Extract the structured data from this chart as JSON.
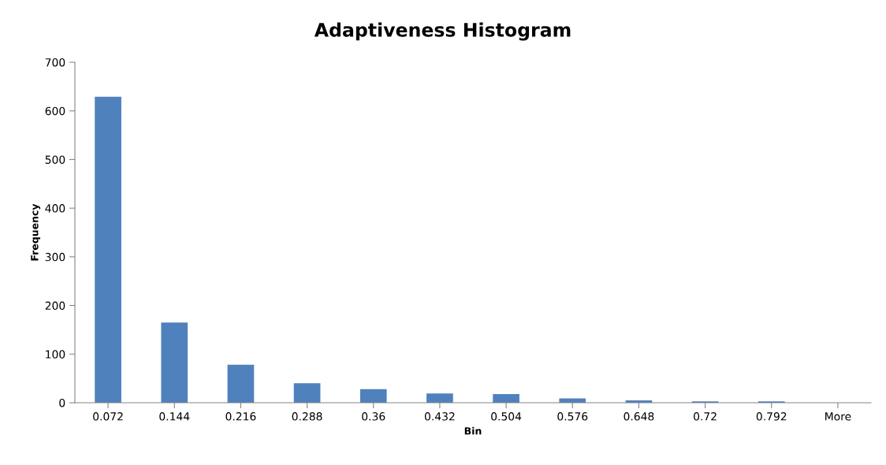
{
  "chart_data": {
    "type": "bar",
    "title": "Adaptiveness Histogram",
    "xlabel": "Bin",
    "ylabel": "Frequency",
    "categories": [
      "0.072",
      "0.144",
      "0.216",
      "0.288",
      "0.36",
      "0.432",
      "0.504",
      "0.576",
      "0.648",
      "0.72",
      "0.792",
      "More"
    ],
    "values": [
      629,
      165,
      78,
      40,
      28,
      19,
      18,
      9,
      5,
      3,
      3,
      0
    ],
    "color": "#4f81bd",
    "ylim": [
      0,
      700
    ],
    "yticks": [
      0,
      100,
      200,
      300,
      400,
      500,
      600,
      700
    ],
    "grid": false,
    "legend": false
  }
}
